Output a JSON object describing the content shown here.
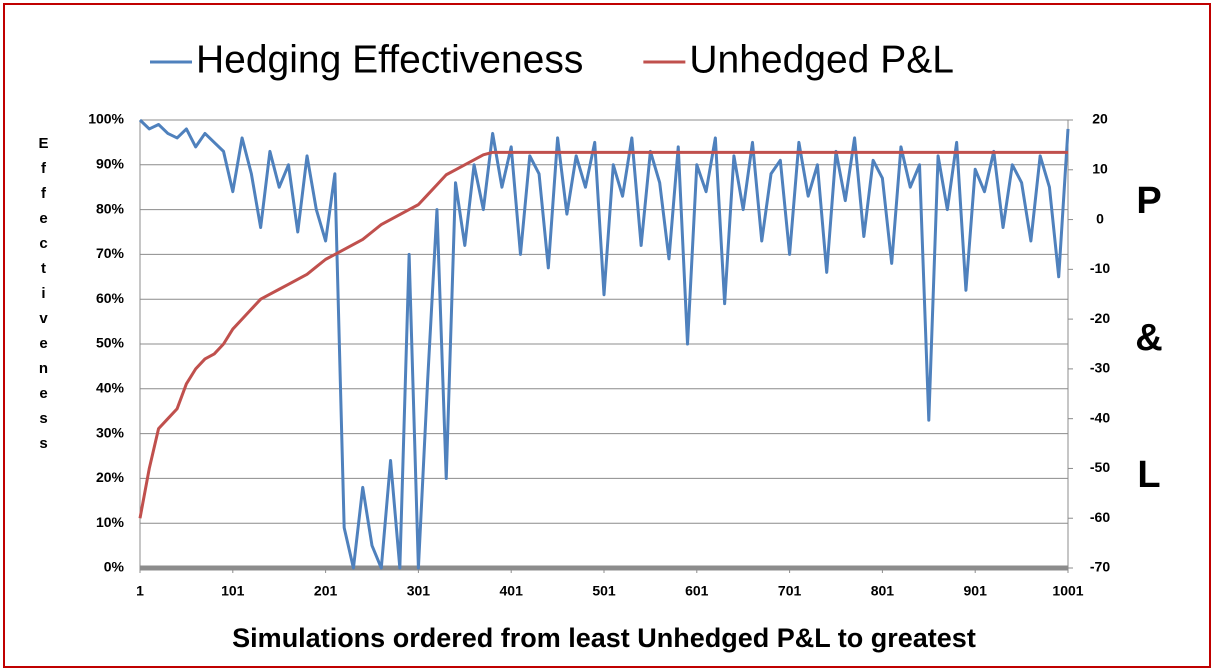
{
  "chart_data": {
    "type": "line",
    "series": [
      {
        "name": "Hedging Effectiveness",
        "color": "#4f81bd",
        "axis": "y",
        "values": [
          100,
          98,
          99,
          97,
          96,
          98,
          94,
          97,
          95,
          93,
          84,
          96,
          88,
          76,
          93,
          85,
          90,
          75,
          92,
          80,
          73,
          88,
          9,
          0,
          18,
          5,
          0,
          24,
          0,
          70,
          0,
          42,
          80,
          20,
          86,
          72,
          90,
          80,
          97,
          85,
          94,
          70,
          92,
          88,
          67,
          96,
          79,
          92,
          85,
          95,
          61,
          90,
          83,
          96,
          72,
          93,
          86,
          69,
          94,
          50,
          90,
          84,
          96,
          59,
          92,
          80,
          95,
          73,
          88,
          91,
          70,
          95,
          83,
          90,
          66,
          93,
          82,
          96,
          74,
          91,
          87,
          68,
          94,
          85,
          90,
          33,
          92,
          80,
          95,
          62,
          89,
          84,
          93,
          76,
          90,
          86,
          73,
          92,
          85,
          65,
          98
        ]
      },
      {
        "name": "Unhedged P&L",
        "color": "#c0504d",
        "axis": "y2",
        "values": [
          -60,
          -50,
          -42,
          -40,
          -38,
          -33,
          -30,
          -28,
          -27,
          -25,
          -22,
          -20,
          -18,
          -16,
          -15,
          -14,
          -13,
          -12,
          -11,
          -9.5,
          -8,
          -7,
          -6,
          -5,
          -4,
          -2.5,
          -1,
          0,
          1,
          2,
          3,
          5,
          7,
          9,
          10,
          11,
          12,
          13,
          13.5,
          13.5,
          13.5,
          13.5,
          13.5,
          13.5,
          13.5,
          13.5,
          13.5,
          13.5,
          13.5,
          13.5,
          13.5,
          13.5,
          13.5,
          13.5,
          13.5,
          13.5,
          13.5,
          13.5,
          13.5,
          13.5,
          13.5,
          13.5,
          13.5,
          13.5,
          13.5,
          13.5,
          13.5,
          13.5,
          13.5,
          13.5,
          13.5,
          13.5,
          13.5,
          13.5,
          13.5,
          13.5,
          13.5,
          13.5,
          13.5,
          13.5,
          13.5,
          13.5,
          13.5,
          13.5,
          13.5,
          13.5,
          13.5,
          13.5,
          13.5,
          13.5,
          13.5,
          13.5,
          13.5,
          13.5,
          13.5,
          13.5,
          13.5,
          13.5,
          13.5,
          13.5,
          13.5
        ]
      }
    ],
    "x": [
      1,
      11,
      21,
      31,
      41,
      51,
      61,
      71,
      81,
      91,
      101,
      111,
      121,
      131,
      141,
      151,
      161,
      171,
      181,
      191,
      201,
      211,
      221,
      231,
      241,
      251,
      261,
      271,
      281,
      291,
      301,
      311,
      321,
      331,
      341,
      351,
      361,
      371,
      381,
      391,
      401,
      411,
      421,
      431,
      441,
      451,
      461,
      471,
      481,
      491,
      501,
      511,
      521,
      531,
      541,
      551,
      561,
      571,
      581,
      591,
      601,
      611,
      621,
      631,
      641,
      651,
      661,
      671,
      681,
      691,
      701,
      711,
      721,
      731,
      741,
      751,
      761,
      771,
      781,
      791,
      801,
      811,
      821,
      831,
      841,
      851,
      861,
      871,
      881,
      891,
      901,
      911,
      921,
      931,
      941,
      951,
      961,
      971,
      981,
      991,
      1001
    ],
    "xlim": [
      1,
      1001
    ],
    "xticks": [
      1,
      101,
      201,
      301,
      401,
      501,
      601,
      701,
      801,
      901,
      1001
    ],
    "ylim": [
      0,
      100
    ],
    "yticks": [
      {
        "value": 0,
        "label": "0%"
      },
      {
        "value": 10,
        "label": "10%"
      },
      {
        "value": 20,
        "label": "20%"
      },
      {
        "value": 30,
        "label": "30%"
      },
      {
        "value": 40,
        "label": "40%"
      },
      {
        "value": 50,
        "label": "50%"
      },
      {
        "value": 60,
        "label": "60%"
      },
      {
        "value": 70,
        "label": "70%"
      },
      {
        "value": 80,
        "label": "80%"
      },
      {
        "value": 90,
        "label": "90%"
      },
      {
        "value": 100,
        "label": "100%"
      }
    ],
    "y2lim": [
      -70,
      20
    ],
    "y2ticks": [
      -70,
      -60,
      -50,
      -40,
      -30,
      -20,
      -10,
      0,
      10,
      20
    ],
    "x_label": "Simulations ordered from least Unhedged P&L to greatest",
    "y_label": "Effectiveness",
    "y2_label": "P&L",
    "grid": true
  }
}
